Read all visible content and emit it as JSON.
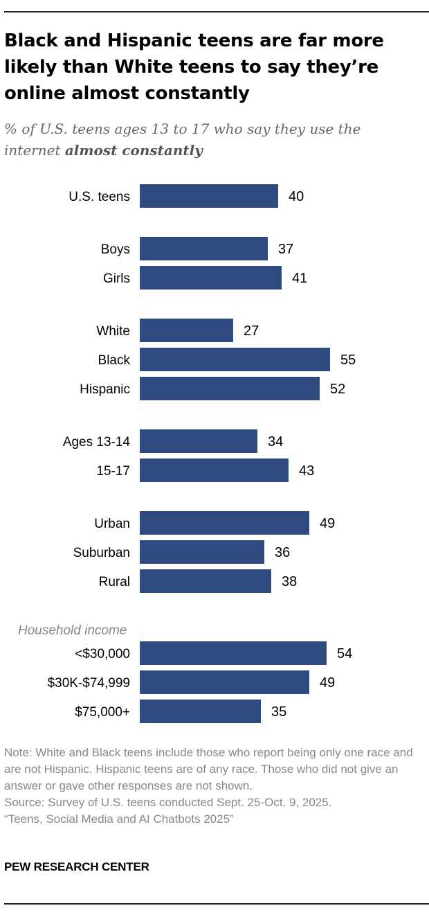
{
  "title": "Black and Hispanic teens are far more likely than White teens to say they’re online almost constantly",
  "subtitle_prefix": "% of U.S. teens ages 13 to 17 who say they use the internet ",
  "subtitle_emphasis": "almost constantly",
  "chart_data": {
    "type": "bar",
    "orientation": "horizontal",
    "bar_color": "#2d4b7e",
    "label_color": "#000000",
    "group_label_color": "#888888",
    "groups": [
      {
        "heading": "",
        "categories": [
          "U.S. teens"
        ],
        "values": [
          40
        ]
      },
      {
        "heading": "",
        "categories": [
          "Boys",
          "Girls"
        ],
        "values": [
          37,
          41
        ]
      },
      {
        "heading": "",
        "categories": [
          "White",
          "Black",
          "Hispanic"
        ],
        "values": [
          27,
          55,
          52
        ]
      },
      {
        "heading": "",
        "categories": [
          "Ages 13-14",
          "15-17"
        ],
        "values": [
          34,
          43
        ]
      },
      {
        "heading": "",
        "categories": [
          "Urban",
          "Suburban",
          "Rural"
        ],
        "values": [
          49,
          36,
          38
        ]
      },
      {
        "heading": "Household income",
        "categories": [
          "<$30,000",
          "$30K-$74,999",
          "$75,000+"
        ],
        "values": [
          54,
          49,
          35
        ]
      }
    ]
  },
  "notes": {
    "note": "Note: White and Black teens include those who report being only one race and are not Hispanic. Hispanic teens are of any race. Those who did not give an answer or gave other responses are not shown.",
    "source": "Source: Survey of U.S. teens conducted Sept. 25-Oct. 9, 2025.",
    "report": "“Teens, Social Media and AI Chatbots 2025”"
  },
  "brand": "PEW RESEARCH CENTER"
}
